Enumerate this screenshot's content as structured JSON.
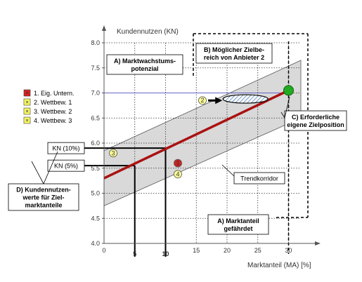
{
  "chart_data": {
    "type": "scatter",
    "xlabel": "Marktanteil (MA) [%]",
    "ylabel": "Kundennutzen (KN)",
    "xlim": [
      0,
      32
    ],
    "ylim": [
      4.0,
      8.0
    ],
    "x_ticks": [
      "0",
      "5",
      "10",
      "15",
      "20",
      "25",
      "30"
    ],
    "y_ticks": [
      "4.0",
      "4.5",
      "5.0",
      "5.5",
      "6.0",
      "6.5",
      "7.0",
      "7.5",
      "8.0"
    ],
    "highlight_x_ticks": [
      "5",
      "10"
    ],
    "trend_line": {
      "x": [
        0,
        30
      ],
      "y": [
        5.3,
        7.05
      ]
    },
    "corridor": {
      "upper": [
        [
          0,
          5.85
        ],
        [
          32,
          7.65
        ]
      ],
      "lower": [
        [
          0,
          4.75
        ],
        [
          32,
          6.5
        ]
      ]
    },
    "target_line_y": 7.0,
    "target_ellipse": {
      "x": 23,
      "y": 6.88
    },
    "target_point": {
      "x": 30,
      "y": 7.05
    },
    "kn_lines": [
      {
        "label": "KN (10%)",
        "x": 10,
        "y": 5.9
      },
      {
        "label": "KN (5%)",
        "x": 5,
        "y": 5.55
      }
    ],
    "points": [
      {
        "id": "1",
        "x": 12,
        "y": 5.6,
        "color": "#cc2222"
      },
      {
        "id": "2",
        "x": 16,
        "y": 6.85,
        "color": "#ffff99"
      },
      {
        "id": "3",
        "x": 1.5,
        "y": 5.8,
        "color": "#ffff99"
      },
      {
        "id": "4",
        "x": 12,
        "y": 5.38,
        "color": "#ffff99"
      }
    ],
    "legend": [
      {
        "label": "1. Eig. Untern.",
        "color": "#dd2222"
      },
      {
        "label": "2. Wettbew. 1",
        "color": "#ffff66"
      },
      {
        "label": "3. Wettbew. 2",
        "color": "#ffff66"
      },
      {
        "label": "4. Wettbew. 3",
        "color": "#ffff66"
      }
    ],
    "annotations": {
      "a_growth": [
        "A) Marktwachstums-",
        "potenzial"
      ],
      "b_target": [
        "B) Möglicher Zielbe-",
        "reich von Anbieter 2"
      ],
      "c_target": [
        "C) Erforderliche",
        "eigene Zielposition"
      ],
      "d_values": [
        "D) Kundennutzen-",
        "werte für Ziel-",
        "marktanteile"
      ],
      "a_share": [
        "A) Marktanteil",
        "gefährdet"
      ],
      "trend": "Trendkorridor"
    },
    "colors": {
      "trend": "#aa1111",
      "corridor": "#d9d9d9",
      "target_line": "#6666cc",
      "target_point": "#22aa22"
    }
  }
}
